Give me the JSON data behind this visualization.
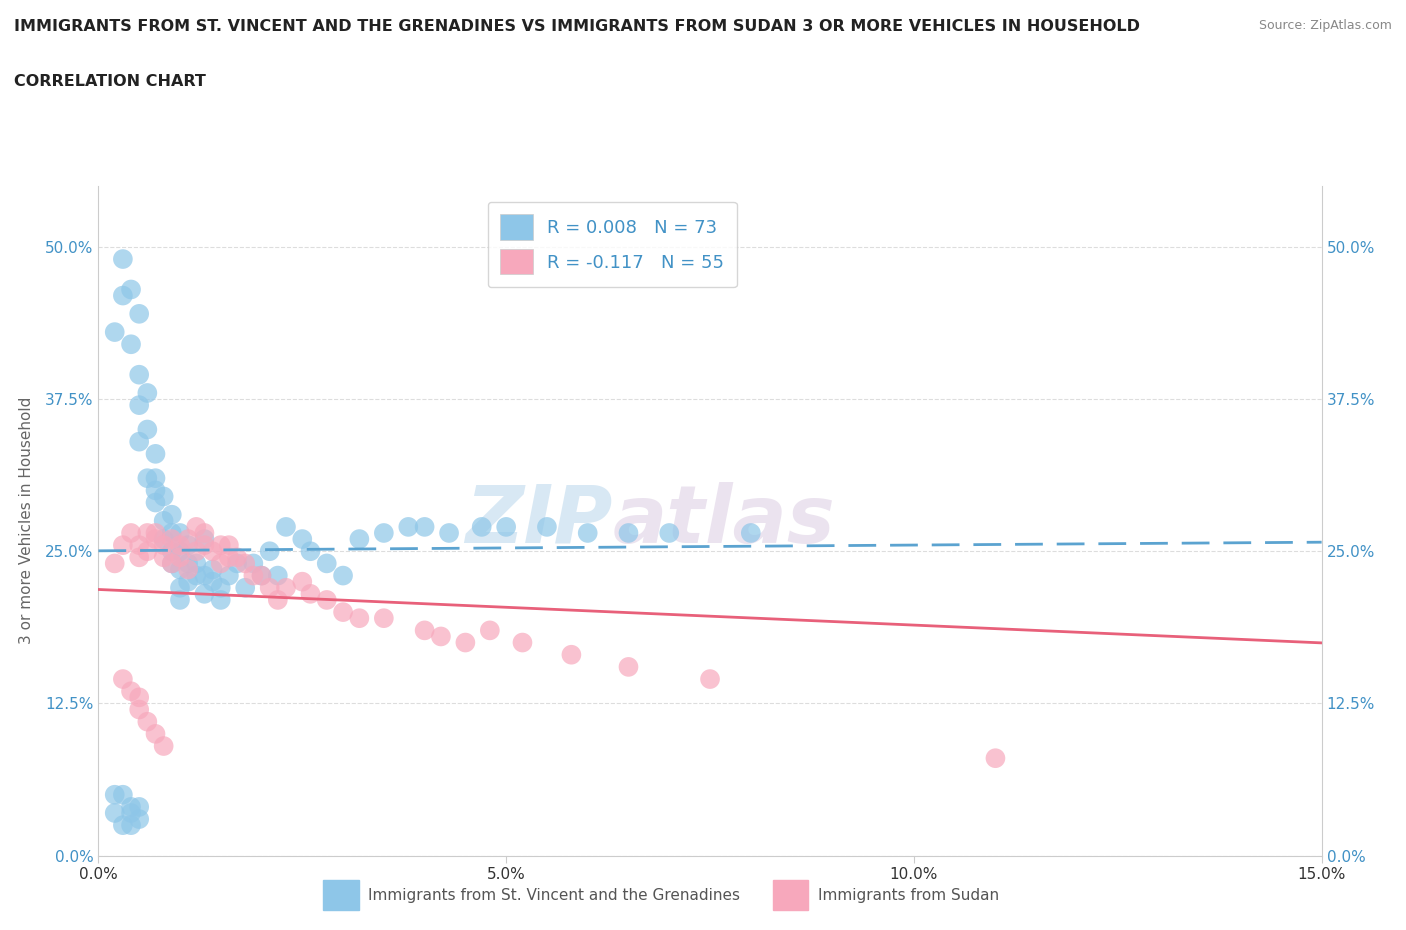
{
  "title_line1": "IMMIGRANTS FROM ST. VINCENT AND THE GRENADINES VS IMMIGRANTS FROM SUDAN 3 OR MORE VEHICLES IN HOUSEHOLD",
  "title_line2": "CORRELATION CHART",
  "source_text": "Source: ZipAtlas.com",
  "ylabel": "3 or more Vehicles in Household",
  "xlim": [
    0.0,
    0.15
  ],
  "ylim": [
    0.0,
    0.55
  ],
  "xticks": [
    0.0,
    0.05,
    0.1,
    0.15
  ],
  "xticklabels": [
    "0.0%",
    "5.0%",
    "10.0%",
    "15.0%"
  ],
  "yticks": [
    0.0,
    0.125,
    0.25,
    0.375,
    0.5
  ],
  "yticklabels": [
    "0.0%",
    "12.5%",
    "25.0%",
    "37.5%",
    "50.0%"
  ],
  "color_blue": "#8ec6e8",
  "color_pink": "#f7a8bc",
  "color_blue_line": "#5ba3d0",
  "color_pink_line": "#e8607a",
  "legend_R1": "R = 0.008",
  "legend_N1": "N = 73",
  "legend_R2": "R = -0.117",
  "legend_N2": "N = 55",
  "watermark_zip": "ZIP",
  "watermark_atlas": "atlas",
  "r1": 0.008,
  "r2": -0.117,
  "blue_dots_x": [
    0.002,
    0.003,
    0.003,
    0.004,
    0.005,
    0.004,
    0.005,
    0.005,
    0.006,
    0.006,
    0.005,
    0.006,
    0.007,
    0.007,
    0.007,
    0.007,
    0.008,
    0.008,
    0.008,
    0.009,
    0.009,
    0.009,
    0.009,
    0.01,
    0.01,
    0.01,
    0.01,
    0.01,
    0.011,
    0.011,
    0.011,
    0.012,
    0.012,
    0.013,
    0.013,
    0.013,
    0.014,
    0.014,
    0.015,
    0.015,
    0.016,
    0.017,
    0.018,
    0.019,
    0.02,
    0.021,
    0.022,
    0.023,
    0.025,
    0.026,
    0.028,
    0.03,
    0.032,
    0.035,
    0.038,
    0.04,
    0.043,
    0.047,
    0.05,
    0.055,
    0.06,
    0.065,
    0.07,
    0.08,
    0.002,
    0.002,
    0.003,
    0.003,
    0.004,
    0.004,
    0.004,
    0.005,
    0.005
  ],
  "blue_dots_y": [
    0.43,
    0.46,
    0.49,
    0.465,
    0.445,
    0.42,
    0.395,
    0.37,
    0.35,
    0.38,
    0.34,
    0.31,
    0.33,
    0.3,
    0.29,
    0.31,
    0.295,
    0.275,
    0.26,
    0.28,
    0.265,
    0.25,
    0.24,
    0.265,
    0.25,
    0.235,
    0.22,
    0.21,
    0.255,
    0.24,
    0.225,
    0.24,
    0.23,
    0.26,
    0.23,
    0.215,
    0.235,
    0.225,
    0.21,
    0.22,
    0.23,
    0.24,
    0.22,
    0.24,
    0.23,
    0.25,
    0.23,
    0.27,
    0.26,
    0.25,
    0.24,
    0.23,
    0.26,
    0.265,
    0.27,
    0.27,
    0.265,
    0.27,
    0.27,
    0.27,
    0.265,
    0.265,
    0.265,
    0.265,
    0.05,
    0.035,
    0.025,
    0.05,
    0.035,
    0.025,
    0.04,
    0.03,
    0.04
  ],
  "pink_dots_x": [
    0.002,
    0.003,
    0.004,
    0.005,
    0.005,
    0.006,
    0.006,
    0.007,
    0.007,
    0.008,
    0.008,
    0.009,
    0.009,
    0.01,
    0.01,
    0.011,
    0.011,
    0.012,
    0.012,
    0.013,
    0.013,
    0.014,
    0.015,
    0.015,
    0.016,
    0.016,
    0.017,
    0.018,
    0.019,
    0.02,
    0.021,
    0.022,
    0.023,
    0.025,
    0.026,
    0.028,
    0.03,
    0.032,
    0.035,
    0.04,
    0.042,
    0.045,
    0.048,
    0.052,
    0.058,
    0.065,
    0.075,
    0.003,
    0.004,
    0.005,
    0.005,
    0.006,
    0.007,
    0.008,
    0.11
  ],
  "pink_dots_y": [
    0.24,
    0.255,
    0.265,
    0.245,
    0.255,
    0.265,
    0.25,
    0.265,
    0.26,
    0.255,
    0.245,
    0.24,
    0.26,
    0.255,
    0.245,
    0.26,
    0.235,
    0.27,
    0.25,
    0.255,
    0.265,
    0.25,
    0.24,
    0.255,
    0.245,
    0.255,
    0.245,
    0.24,
    0.23,
    0.23,
    0.22,
    0.21,
    0.22,
    0.225,
    0.215,
    0.21,
    0.2,
    0.195,
    0.195,
    0.185,
    0.18,
    0.175,
    0.185,
    0.175,
    0.165,
    0.155,
    0.145,
    0.145,
    0.135,
    0.13,
    0.12,
    0.11,
    0.1,
    0.09,
    0.08
  ]
}
